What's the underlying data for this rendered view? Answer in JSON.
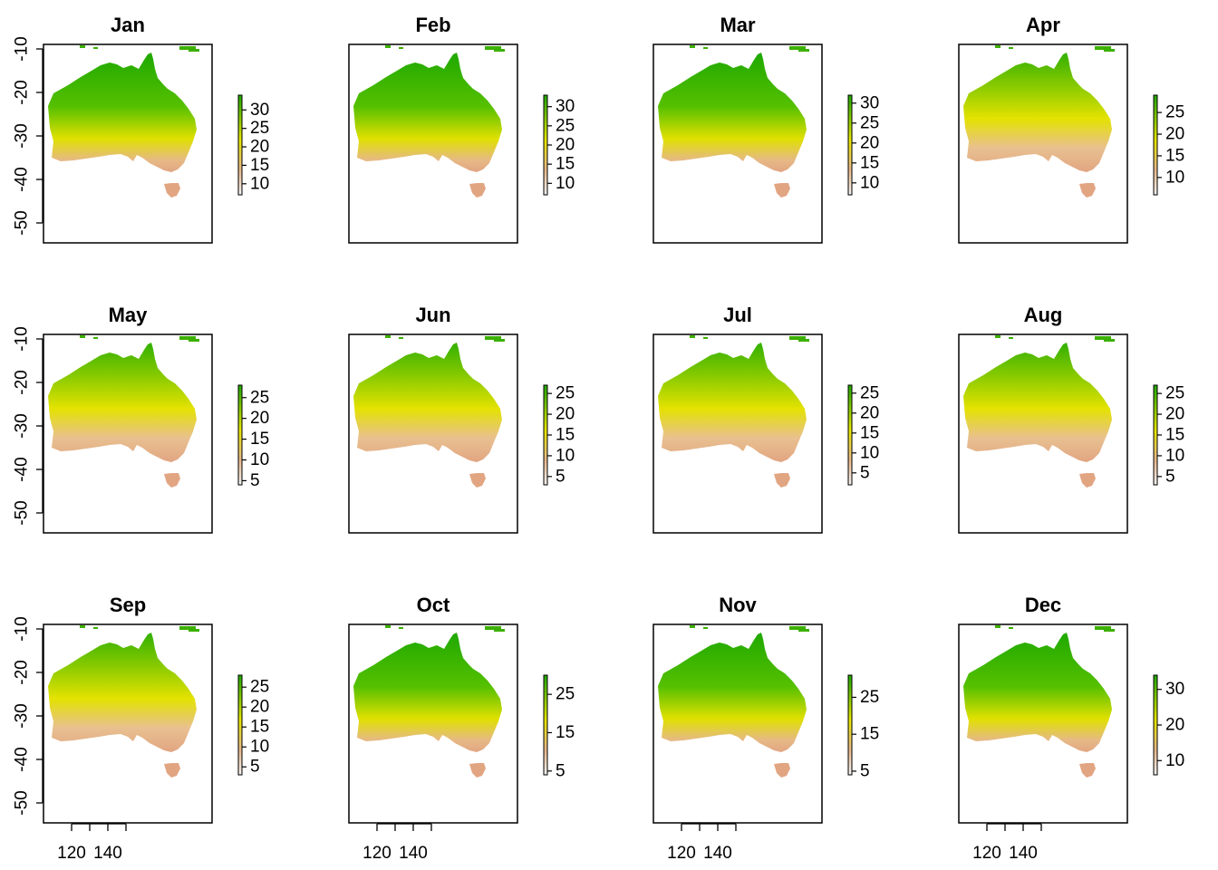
{
  "panels": [
    {
      "title": "Jan",
      "legend_ticks": [
        "30",
        "25",
        "20",
        "15",
        "10"
      ],
      "range": [
        7,
        34
      ]
    },
    {
      "title": "Feb",
      "legend_ticks": [
        "30",
        "25",
        "20",
        "15",
        "10"
      ],
      "range": [
        7,
        33
      ]
    },
    {
      "title": "Mar",
      "legend_ticks": [
        "30",
        "25",
        "20",
        "15",
        "10"
      ],
      "range": [
        7,
        32
      ]
    },
    {
      "title": "Apr",
      "legend_ticks": [
        "25",
        "20",
        "15",
        "10"
      ],
      "range": [
        6,
        29
      ]
    },
    {
      "title": "May",
      "legend_ticks": [
        "25",
        "20",
        "15",
        "10",
        "5"
      ],
      "range": [
        4,
        28
      ]
    },
    {
      "title": "Jun",
      "legend_ticks": [
        "25",
        "20",
        "15",
        "10",
        "5"
      ],
      "range": [
        3,
        27
      ]
    },
    {
      "title": "Jul",
      "legend_ticks": [
        "25",
        "20",
        "15",
        "10",
        "5"
      ],
      "range": [
        2,
        27
      ]
    },
    {
      "title": "Aug",
      "legend_ticks": [
        "25",
        "20",
        "15",
        "10",
        "5"
      ],
      "range": [
        3,
        27
      ]
    },
    {
      "title": "Sep",
      "legend_ticks": [
        "25",
        "20",
        "15",
        "10",
        "5"
      ],
      "range": [
        3,
        28
      ]
    },
    {
      "title": "Oct",
      "legend_ticks": [
        "25",
        "15",
        "5"
      ],
      "range": [
        4,
        30
      ]
    },
    {
      "title": "Nov",
      "legend_ticks": [
        "25",
        "15",
        "5"
      ],
      "range": [
        4,
        31
      ]
    },
    {
      "title": "Dec",
      "legend_ticks": [
        "30",
        "20",
        "10"
      ],
      "range": [
        6,
        34
      ]
    }
  ],
  "y_axis_ticks": [
    "-10",
    "-20",
    "-30",
    "-40",
    "-50"
  ],
  "x_axis_ticks": [
    "120",
    "140"
  ],
  "colors": {
    "high": "#1fa800",
    "mid": "#e6e600",
    "low": "#e8b88a",
    "lowest": "#f2f2f2"
  }
}
